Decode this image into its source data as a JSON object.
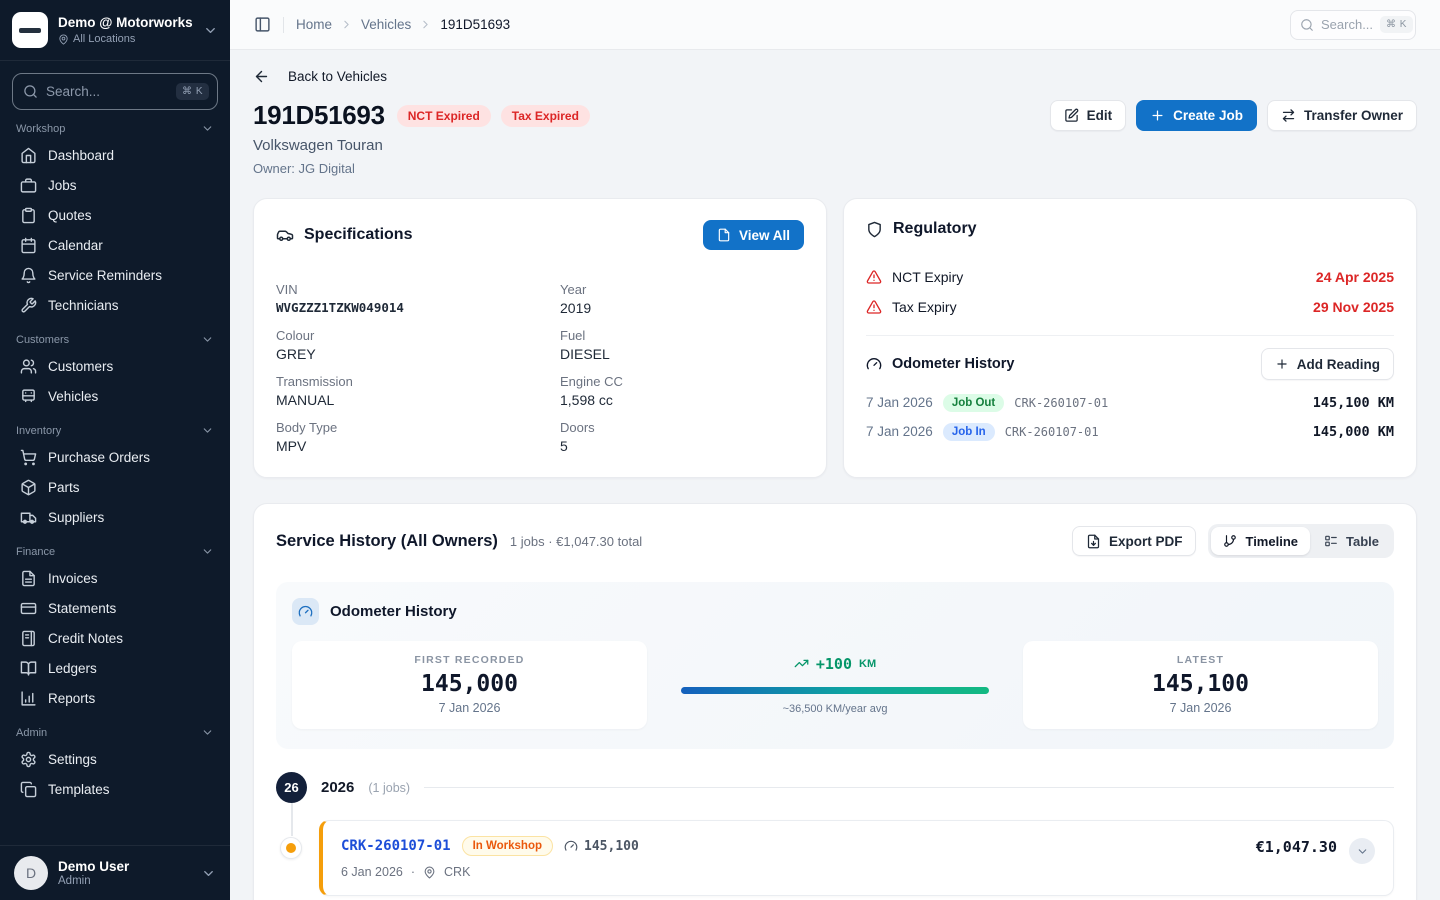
{
  "colors": {
    "accent": "#1272c8",
    "danger": "#dc2626",
    "orange": "#f59e0b",
    "green": "#059669",
    "sidebar_bg": "#0e1a2a"
  },
  "sidebar": {
    "org": {
      "name": "Demo @ Motorworks",
      "location": "All Locations"
    },
    "search": {
      "placeholder": "Search...",
      "shortcut": "⌘ K"
    },
    "sections": [
      {
        "label": "Workshop",
        "items": [
          {
            "icon": "home",
            "label": "Dashboard"
          },
          {
            "icon": "briefcase",
            "label": "Jobs"
          },
          {
            "icon": "clipboard",
            "label": "Quotes"
          },
          {
            "icon": "calendar",
            "label": "Calendar"
          },
          {
            "icon": "bell",
            "label": "Service Reminders"
          },
          {
            "icon": "wrench",
            "label": "Technicians"
          }
        ]
      },
      {
        "label": "Customers",
        "items": [
          {
            "icon": "users",
            "label": "Customers"
          },
          {
            "icon": "bus",
            "label": "Vehicles"
          }
        ]
      },
      {
        "label": "Inventory",
        "items": [
          {
            "icon": "cart",
            "label": "Purchase Orders"
          },
          {
            "icon": "package",
            "label": "Parts"
          },
          {
            "icon": "truck",
            "label": "Suppliers"
          }
        ]
      },
      {
        "label": "Finance",
        "items": [
          {
            "icon": "file-text",
            "label": "Invoices"
          },
          {
            "icon": "credit-card",
            "label": "Statements"
          },
          {
            "icon": "notebook",
            "label": "Credit Notes"
          },
          {
            "icon": "book-open",
            "label": "Ledgers"
          },
          {
            "icon": "bar-chart",
            "label": "Reports"
          }
        ]
      },
      {
        "label": "Admin",
        "items": [
          {
            "icon": "settings",
            "label": "Settings"
          },
          {
            "icon": "copy",
            "label": "Templates"
          }
        ]
      }
    ],
    "user": {
      "name": "Demo User",
      "role": "Admin",
      "avatar_initial": "D"
    }
  },
  "topbar": {
    "breadcrumb": [
      "Home",
      "Vehicles",
      "191D51693"
    ],
    "search": {
      "placeholder": "Search...",
      "shortcut": "⌘ K"
    }
  },
  "page": {
    "back_label": "Back to Vehicles",
    "title": "191D51693",
    "badges": [
      "NCT Expired",
      "Tax Expired"
    ],
    "subtitle": "Volkswagen Touran",
    "owner": "Owner: JG Digital",
    "actions": {
      "edit": "Edit",
      "create_job": "Create Job",
      "transfer_owner": "Transfer Owner"
    }
  },
  "specifications": {
    "title": "Specifications",
    "view_all": "View All",
    "fields": [
      {
        "label": "VIN",
        "value": "WVGZZZ1TZKW049014",
        "mono": true
      },
      {
        "label": "Year",
        "value": "2019"
      },
      {
        "label": "Colour",
        "value": "GREY"
      },
      {
        "label": "Fuel",
        "value": "DIESEL"
      },
      {
        "label": "Transmission",
        "value": "MANUAL"
      },
      {
        "label": "Engine CC",
        "value": "1,598 cc"
      },
      {
        "label": "Body Type",
        "value": "MPV"
      },
      {
        "label": "Doors",
        "value": "5"
      }
    ]
  },
  "regulatory": {
    "title": "Regulatory",
    "rows": [
      {
        "label": "NCT Expiry",
        "value": "24 Apr 2025"
      },
      {
        "label": "Tax Expiry",
        "value": "29 Nov 2025"
      }
    ],
    "odometer": {
      "title": "Odometer History",
      "add_button": "Add Reading",
      "rows": [
        {
          "date": "7 Jan 2026",
          "badge": "Job Out",
          "badge_type": "out",
          "ref": "CRK-260107-01",
          "value": "145,100 KM"
        },
        {
          "date": "7 Jan 2026",
          "badge": "Job In",
          "badge_type": "in",
          "ref": "CRK-260107-01",
          "value": "145,000 KM"
        }
      ]
    }
  },
  "service_history": {
    "title": "Service History (All Owners)",
    "summary": "1 jobs · €1,047.30 total",
    "export_pdf": "Export PDF",
    "view_toggle": {
      "timeline": "Timeline",
      "table": "Table",
      "active": "Timeline"
    },
    "odometer_panel": {
      "title": "Odometer History",
      "first": {
        "label": "FIRST RECORDED",
        "value": "145,000",
        "date": "7 Jan 2026"
      },
      "delta": {
        "value": "+100",
        "unit": "KM",
        "avg": "~36,500 KM/year avg"
      },
      "latest": {
        "label": "LATEST",
        "value": "145,100",
        "date": "7 Jan 2026"
      }
    },
    "timeline": {
      "year_badge": "26",
      "year": "2026",
      "jobs_count": "(1 jobs)",
      "jobs": [
        {
          "ref": "CRK-260107-01",
          "status": "In Workshop",
          "odometer": "145,100",
          "date": "6 Jan 2026",
          "location": "CRK",
          "total": "€1,047.30"
        }
      ]
    }
  }
}
